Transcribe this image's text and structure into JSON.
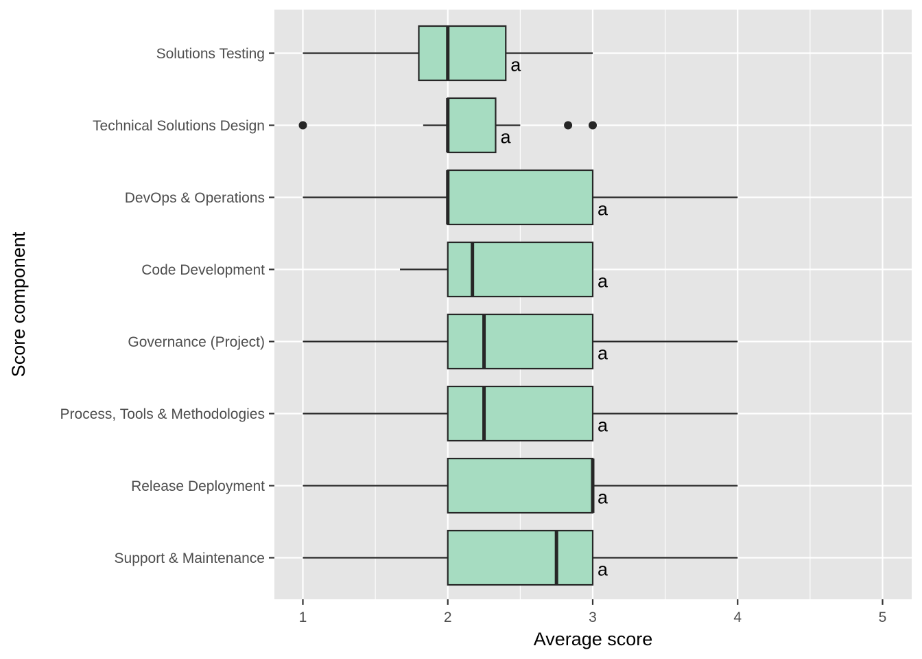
{
  "chart_data": {
    "type": "boxplot",
    "orientation": "horizontal",
    "xlabel": "Average score",
    "ylabel": "Score component",
    "xlim": [
      0.8,
      5.2
    ],
    "x_ticks": [
      1,
      2,
      3,
      4,
      5
    ],
    "x_tick_labels": [
      "1",
      "2",
      "3",
      "4",
      "5"
    ],
    "grid": true,
    "legend": "none",
    "colors": {
      "panel": "#e5e5e5",
      "grid": "#ffffff",
      "box_fill": "#a6dcc1",
      "box_stroke": "#262626"
    },
    "categories": [
      {
        "label": "Solutions Testing",
        "whisker_low": 1.0,
        "q1": 1.8,
        "median": 2.0,
        "q3": 2.4,
        "whisker_high": 3.0,
        "outliers": [],
        "group": "a"
      },
      {
        "label": "Technical Solutions Design",
        "whisker_low": 1.83,
        "q1": 2.0,
        "median": 2.0,
        "q3": 2.33,
        "whisker_high": 2.5,
        "outliers": [
          1.0,
          2.83,
          3.0
        ],
        "group": "a"
      },
      {
        "label": "DevOps & Operations",
        "whisker_low": 1.0,
        "q1": 2.0,
        "median": 2.0,
        "q3": 3.0,
        "whisker_high": 4.0,
        "outliers": [],
        "group": "a"
      },
      {
        "label": "Code Development",
        "whisker_low": 1.67,
        "q1": 2.0,
        "median": 2.17,
        "q3": 3.0,
        "whisker_high": 3.0,
        "outliers": [],
        "group": "a"
      },
      {
        "label": "Governance (Project)",
        "whisker_low": 1.0,
        "q1": 2.0,
        "median": 2.25,
        "q3": 3.0,
        "whisker_high": 4.0,
        "outliers": [],
        "group": "a"
      },
      {
        "label": "Process, Tools & Methodologies",
        "whisker_low": 1.0,
        "q1": 2.0,
        "median": 2.25,
        "q3": 3.0,
        "whisker_high": 4.0,
        "outliers": [],
        "group": "a"
      },
      {
        "label": "Release Deployment",
        "whisker_low": 1.0,
        "q1": 2.0,
        "median": 3.0,
        "q3": 3.0,
        "whisker_high": 4.0,
        "outliers": [],
        "group": "a"
      },
      {
        "label": "Support & Maintenance",
        "whisker_low": 1.0,
        "q1": 2.0,
        "median": 2.75,
        "q3": 3.0,
        "whisker_high": 4.0,
        "outliers": [],
        "group": "a"
      }
    ]
  }
}
